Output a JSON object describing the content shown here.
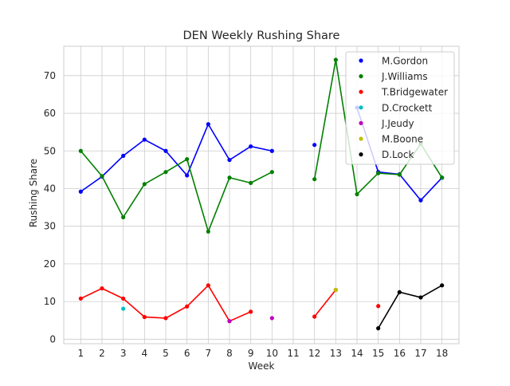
{
  "chart_data": {
    "type": "line",
    "title": "DEN Weekly Rushing Share",
    "xlabel": "Week",
    "ylabel": "Rushing Share",
    "x": [
      1,
      2,
      3,
      4,
      5,
      6,
      7,
      8,
      9,
      10,
      11,
      12,
      13,
      14,
      15,
      16,
      17,
      18
    ],
    "x_tick_labels": [
      "1",
      "2",
      "3",
      "4",
      "5",
      "6",
      "7",
      "8",
      "9",
      "10",
      "11",
      "12",
      "13",
      "14",
      "15",
      "16",
      "17",
      "18"
    ],
    "y_ticks": [
      0,
      10,
      20,
      30,
      40,
      50,
      60,
      70
    ],
    "y_tick_labels": [
      "0",
      "10",
      "20",
      "30",
      "40",
      "50",
      "60",
      "70"
    ],
    "xlim": [
      0.2,
      18.8
    ],
    "ylim": [
      -1.2,
      77.8
    ],
    "grid": true,
    "legend_position": "upper-right",
    "series": [
      {
        "name": "M.Gordon",
        "color": "#0000ff",
        "values": [
          39.2,
          43.2,
          48.7,
          53.0,
          50.0,
          43.5,
          57.1,
          47.6,
          51.2,
          50.0,
          null,
          51.6,
          null,
          61.5,
          44.4,
          43.8,
          36.9,
          42.9
        ]
      },
      {
        "name": "J.Williams",
        "color": "#008000",
        "values": [
          50.0,
          43.3,
          32.4,
          41.2,
          44.4,
          47.8,
          28.6,
          42.9,
          41.5,
          44.4,
          null,
          42.5,
          74.2,
          38.5,
          44.1,
          43.7,
          51.9,
          42.9
        ]
      },
      {
        "name": "T.Bridgewater",
        "color": "#ff0000",
        "values": [
          10.8,
          13.5,
          10.8,
          5.9,
          5.6,
          8.7,
          14.3,
          4.8,
          7.3,
          null,
          null,
          6.0,
          13.1,
          null,
          8.8,
          null,
          null,
          null
        ]
      },
      {
        "name": "D.Crockett",
        "color": "#00bfbf",
        "values": [
          null,
          null,
          8.1,
          null,
          null,
          null,
          null,
          null,
          null,
          null,
          null,
          null,
          null,
          null,
          null,
          null,
          null,
          null
        ]
      },
      {
        "name": "J.Jeudy",
        "color": "#bf00bf",
        "values": [
          null,
          null,
          null,
          null,
          null,
          null,
          null,
          4.8,
          null,
          5.6,
          null,
          null,
          null,
          null,
          null,
          null,
          null,
          null
        ]
      },
      {
        "name": "M.Boone",
        "color": "#bfbf00",
        "values": [
          null,
          null,
          null,
          null,
          null,
          null,
          null,
          null,
          null,
          null,
          null,
          null,
          13.1,
          null,
          null,
          null,
          null,
          null
        ]
      },
      {
        "name": "D.Lock",
        "color": "#000000",
        "values": [
          null,
          null,
          null,
          null,
          null,
          null,
          null,
          null,
          null,
          null,
          null,
          null,
          null,
          null,
          2.9,
          12.5,
          11.1,
          14.3
        ]
      }
    ]
  }
}
